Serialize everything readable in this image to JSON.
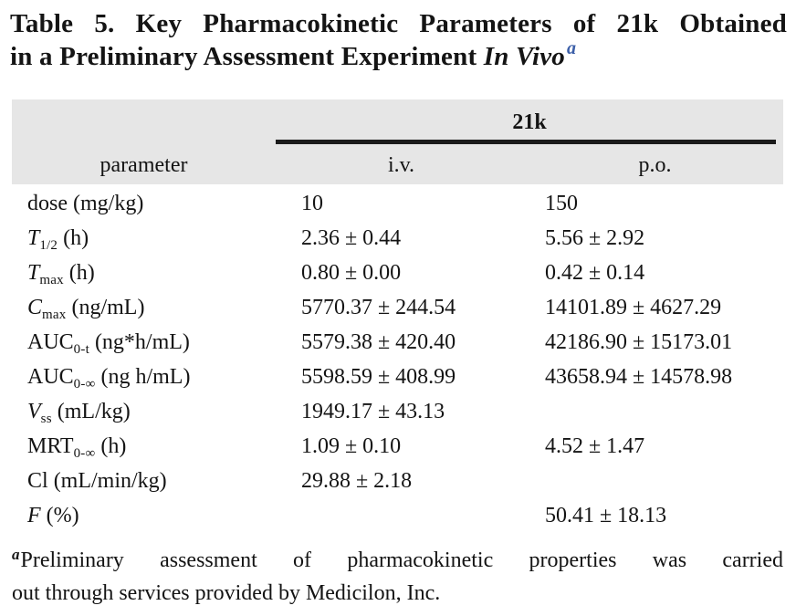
{
  "title": {
    "line1": "Table 5. Key Pharmacokinetic Parameters of 21k Obtained",
    "line2_text": "in a Preliminary Assessment Experiment",
    "line2_italic": "In Vivo",
    "superscript": "a"
  },
  "table": {
    "group_header": "21k",
    "col_parameter": "parameter",
    "col_iv": "i.v.",
    "col_po": "p.o.",
    "rows": [
      {
        "sym": "dose",
        "italic": false,
        "sub": "",
        "unit": "(mg/kg)",
        "iv": "10",
        "po": "150"
      },
      {
        "sym": "T",
        "italic": true,
        "sub": "1/2",
        "unit": "(h)",
        "iv": "2.36 ± 0.44",
        "po": "5.56 ± 2.92"
      },
      {
        "sym": "T",
        "italic": true,
        "sub": "max",
        "unit": "(h)",
        "iv": "0.80 ± 0.00",
        "po": "0.42 ± 0.14"
      },
      {
        "sym": "C",
        "italic": true,
        "sub": "max",
        "unit": "(ng/mL)",
        "iv": "5770.37 ± 244.54",
        "po": "14101.89 ± 4627.29"
      },
      {
        "sym": "AUC",
        "italic": false,
        "sub": "0-t",
        "unit": "(ng*h/mL)",
        "iv": "5579.38 ± 420.40",
        "po": "42186.90 ± 15173.01"
      },
      {
        "sym": "AUC",
        "italic": false,
        "sub": "0-∞",
        "unit": "(ng h/mL)",
        "iv": "5598.59 ± 408.99",
        "po": "43658.94 ± 14578.98"
      },
      {
        "sym": "V",
        "italic": true,
        "sub": "ss",
        "unit": "(mL/kg)",
        "iv": "1949.17 ± 43.13",
        "po": ""
      },
      {
        "sym": "MRT",
        "italic": false,
        "sub": "0-∞",
        "unit": "(h)",
        "iv": "1.09 ± 0.10",
        "po": "4.52 ± 1.47"
      },
      {
        "sym": "Cl",
        "italic": false,
        "sub": "",
        "unit": "(mL/min/kg)",
        "iv": "29.88 ± 2.18",
        "po": ""
      },
      {
        "sym": "F",
        "italic": true,
        "sub": "",
        "unit": "(%)",
        "iv": "",
        "po": "50.41 ± 18.13"
      }
    ]
  },
  "footnote": {
    "marker": "a",
    "line1": "Preliminary assessment of pharmacokinetic properties was carried",
    "line2": "out through services provided by Medicilon, Inc."
  },
  "colors": {
    "header_band": "#e6e6e6",
    "rule_black": "#1b1b1b",
    "superscript_blue": "#3c5fa8",
    "text": "#141414"
  }
}
